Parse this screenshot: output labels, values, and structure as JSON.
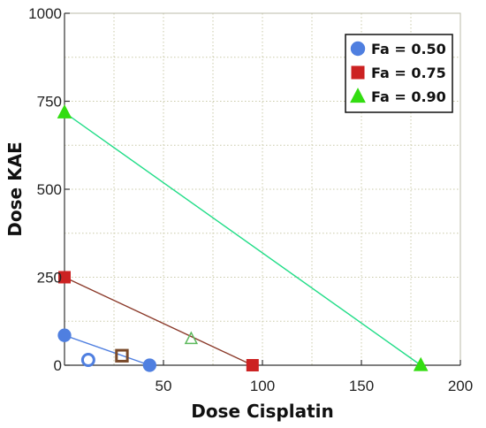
{
  "chart_data": {
    "type": "scatter",
    "title": "",
    "xlabel": "Dose Cisplatin",
    "ylabel": "Dose KAE",
    "xlim": [
      0,
      200
    ],
    "ylim": [
      0,
      1000
    ],
    "x_ticks": [
      50,
      100,
      150,
      200
    ],
    "x_tick_labels": [
      "50",
      "100",
      "150",
      "200"
    ],
    "y_ticks": [
      0,
      250,
      500,
      750,
      1000
    ],
    "y_tick_labels": [
      "0",
      "250",
      "500",
      "750",
      "1000"
    ],
    "grid": true,
    "legend_position": "top-right",
    "series": [
      {
        "name": "Fa = 0.50",
        "marker": "circle",
        "color": "#4f7fe0",
        "line_color": "#4f7fe0",
        "line_points": [
          {
            "x": 0,
            "y": 85
          },
          {
            "x": 43,
            "y": 0
          }
        ],
        "combination_point": {
          "x": 12,
          "y": 15
        }
      },
      {
        "name": "Fa = 0.75",
        "marker": "square",
        "color": "#cc2222",
        "line_color": "#8b3a2a",
        "line_points": [
          {
            "x": 0,
            "y": 250
          },
          {
            "x": 95,
            "y": 0
          }
        ],
        "combination_point": {
          "x": 29,
          "y": 27
        }
      },
      {
        "name": "Fa = 0.90",
        "marker": "triangle",
        "color": "#33dd11",
        "line_color": "#22dd88",
        "line_points": [
          {
            "x": 0,
            "y": 718
          },
          {
            "x": 180,
            "y": 0
          }
        ],
        "combination_point": {
          "x": 64,
          "y": 75
        }
      }
    ]
  }
}
